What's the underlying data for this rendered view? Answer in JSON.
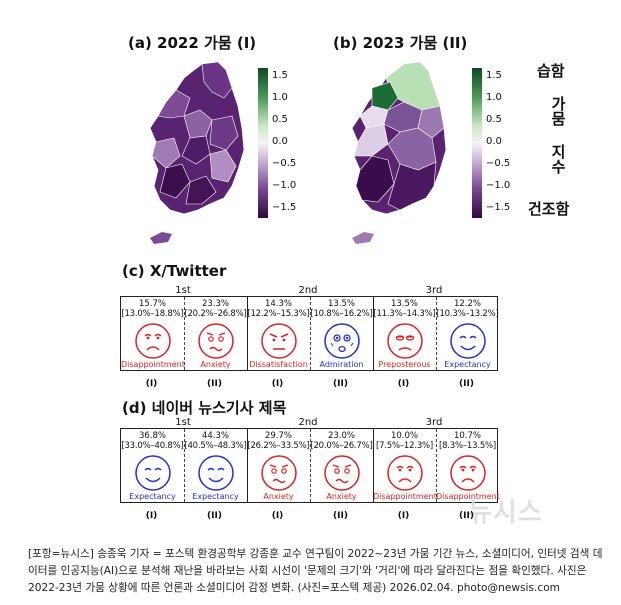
{
  "maps": {
    "a_title": "(a) 2022 가뭄 (I)",
    "b_title": "(b) 2023 가뭄 (II)",
    "colorbar_ticks": [
      "1.5",
      "1.0",
      "0.5",
      "0.0",
      "−0.5",
      "−1.0",
      "−1.5"
    ],
    "label_wet": "습함",
    "label_index": "가뭄 지수",
    "label_dry": "건조함",
    "colors": {
      "dark_green": "#1b6b35",
      "light_green": "#b8e0b4",
      "pale_purple": "#d8c8e0",
      "mid_purple": "#7a4a94",
      "dark_purple": "#3d0f4f"
    }
  },
  "twitter": {
    "title": "(c) X/Twitter",
    "ranks": [
      "1st",
      "2nd",
      "3rd"
    ],
    "cells": [
      {
        "pct": "15.7%",
        "ci": "[13.0%–18.8%]",
        "label": "Disappointment",
        "tone": "red",
        "face": "sad",
        "period": "(I)"
      },
      {
        "pct": "23.3%",
        "ci": "[20.2%–26.8%]",
        "label": "Anxiety",
        "tone": "red",
        "face": "anxious",
        "period": "(II)"
      },
      {
        "pct": "14.3%",
        "ci": "[12.2%–15.3%]",
        "label": "Dissatisfaction",
        "tone": "red",
        "face": "angry",
        "period": "(I)"
      },
      {
        "pct": "13.5%",
        "ci": "[10.8%–16.2%]",
        "label": "Admiration",
        "tone": "blue",
        "face": "admire",
        "period": "(II)"
      },
      {
        "pct": "13.5%",
        "ci": "[11.3%–14.3%]",
        "label": "Preposterous",
        "tone": "red",
        "face": "preposterous",
        "period": "(I)"
      },
      {
        "pct": "12.2%",
        "ci": "[10.3%–13.2%]",
        "label": "Expectancy",
        "tone": "blue",
        "face": "expect",
        "period": "(II)"
      }
    ]
  },
  "naver": {
    "title": "(d) 네이버 뉴스기사 제목",
    "ranks": [
      "1st",
      "2nd",
      "3rd"
    ],
    "cells": [
      {
        "pct": "36.8%",
        "ci": "[33.0%–40.8%]",
        "label": "Expectancy",
        "tone": "blue",
        "face": "expect",
        "period": "(I)"
      },
      {
        "pct": "44.3%",
        "ci": "[40.5%–48.3%]",
        "label": "Expectancy",
        "tone": "blue",
        "face": "expect",
        "period": "(II)"
      },
      {
        "pct": "29.7%",
        "ci": "[26.2%–33.5%]",
        "label": "Anxiety",
        "tone": "red",
        "face": "anxious",
        "period": "(I)"
      },
      {
        "pct": "23.0%",
        "ci": "[20.0%–26.7%]",
        "label": "Anxiety",
        "tone": "red",
        "face": "anxious",
        "period": "(II)"
      },
      {
        "pct": "10.0%",
        "ci": "[7.5%–12.3%]",
        "label": "Disappointment",
        "tone": "red",
        "face": "sad",
        "period": "(I)"
      },
      {
        "pct": "10.7%",
        "ci": "[8.3%–13.5%]",
        "label": "Disappointment",
        "tone": "red",
        "face": "sad",
        "period": "(II)"
      }
    ]
  },
  "watermark": "뉴시스",
  "caption": "[포항=뉴시스] 송종욱 기자 = 포스텍 환경공학부 강종훈 교수 연구팀이 2022~23년 가뭄 기간 뉴스, 소셜미디어, 인터넷 검색 데이터를 인공지능(AI)으로 분석해 재난을 바라보는 사회 시선이 '문제의 크기'와 '거리'에 따라 달라진다는 점을 확인했다. 사진은 2022-23년 가뭄 상황에 따른 언론과 소셜미디어 감정 변화. (사진=포스텍 제공) 2026.02.04. photo@newsis.com"
}
